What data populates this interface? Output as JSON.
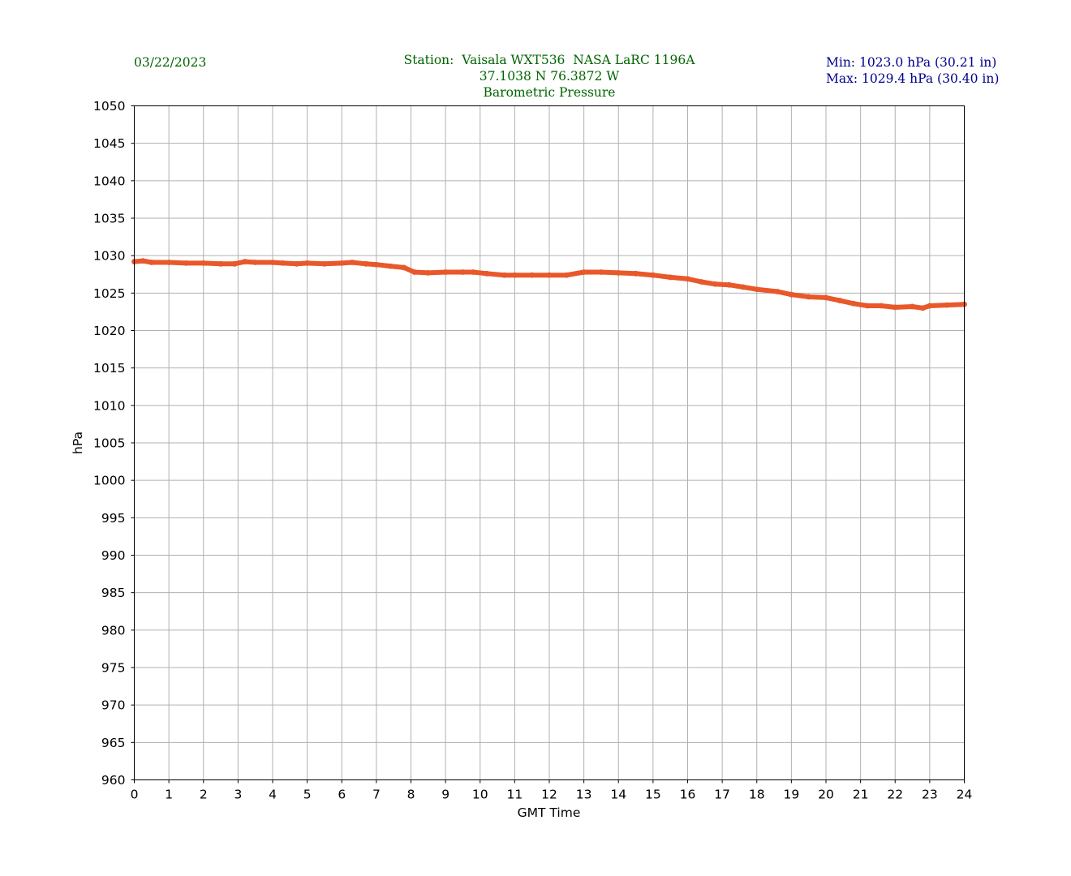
{
  "header": {
    "date": "03/22/2023",
    "station_line": "Station:  Vaisala WXT536  NASA LaRC 1196A",
    "coords_line": "37.1038 N 76.3872 W",
    "variable_line": "Barometric Pressure",
    "min_line": "Min: 1023.0 hPa (30.21 in)",
    "max_line": "Max: 1029.4 hPa (30.40 in)"
  },
  "colors": {
    "series": "#e8582a",
    "grid": "#b0b0b0",
    "title": "#006400",
    "minmax": "#00008b"
  },
  "chart_data": {
    "type": "line",
    "title": "Barometric Pressure",
    "xlabel": "GMT Time",
    "ylabel": "hPa",
    "xlim": [
      0,
      24
    ],
    "ylim": [
      960,
      1050
    ],
    "xticks": [
      0,
      1,
      2,
      3,
      4,
      5,
      6,
      7,
      8,
      9,
      10,
      11,
      12,
      13,
      14,
      15,
      16,
      17,
      18,
      19,
      20,
      21,
      22,
      23,
      24
    ],
    "yticks": [
      960,
      965,
      970,
      975,
      980,
      985,
      990,
      995,
      1000,
      1005,
      1010,
      1015,
      1020,
      1025,
      1030,
      1035,
      1040,
      1045,
      1050
    ],
    "grid": true,
    "series": [
      {
        "x": [
          0,
          0.25,
          0.5,
          1,
          1.5,
          2,
          2.5,
          2.9,
          3.2,
          3.5,
          4,
          4.3,
          4.7,
          5,
          5.5,
          6,
          6.3,
          6.7,
          7,
          7.4,
          7.8,
          8.1,
          8.5,
          9,
          9.5,
          9.8,
          10.2,
          10.7,
          11,
          11.5,
          12,
          12.5,
          13,
          13.5,
          14,
          14.5,
          15,
          15.5,
          16,
          16.4,
          16.8,
          17.2,
          17.6,
          18,
          18.6,
          19,
          19.5,
          20,
          20.4,
          20.8,
          21.2,
          21.6,
          22,
          22.5,
          22.8,
          23,
          23.5,
          24
        ],
        "y": [
          1029.2,
          1029.3,
          1029.1,
          1029.1,
          1029.0,
          1029.0,
          1028.9,
          1028.9,
          1029.2,
          1029.1,
          1029.1,
          1029.0,
          1028.9,
          1029.0,
          1028.9,
          1029.0,
          1029.1,
          1028.9,
          1028.8,
          1028.6,
          1028.4,
          1027.8,
          1027.7,
          1027.8,
          1027.8,
          1027.8,
          1027.6,
          1027.4,
          1027.4,
          1027.4,
          1027.4,
          1027.4,
          1027.8,
          1027.8,
          1027.7,
          1027.6,
          1027.4,
          1027.1,
          1026.9,
          1026.5,
          1026.2,
          1026.1,
          1025.8,
          1025.5,
          1025.2,
          1024.8,
          1024.5,
          1024.4,
          1024.0,
          1023.6,
          1023.3,
          1023.3,
          1023.1,
          1023.2,
          1023.0,
          1023.3,
          1023.4,
          1023.5
        ]
      }
    ]
  }
}
